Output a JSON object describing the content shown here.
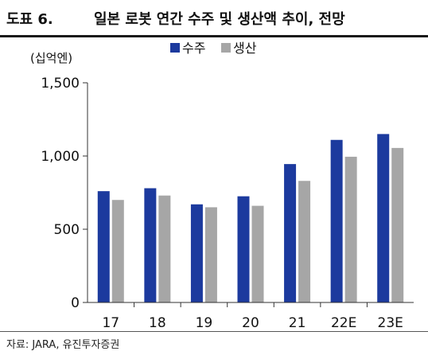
{
  "header": {
    "figure_label": "도표 6.",
    "title": "일본 로봇 연간 수주 및 생산액 추이, 전망"
  },
  "footer": {
    "source": "자료: JARA, 유진투자증권"
  },
  "chart_data": {
    "type": "bar",
    "unit_label": "(십억엔)",
    "categories": [
      "17",
      "18",
      "19",
      "20",
      "21",
      "22E",
      "23E"
    ],
    "series": [
      {
        "name": "수주",
        "color": "#1c3a9e",
        "values": [
          760,
          780,
          670,
          725,
          945,
          1110,
          1150
        ]
      },
      {
        "name": "생산",
        "color": "#a6a6a6",
        "values": [
          700,
          730,
          650,
          660,
          830,
          995,
          1055
        ]
      }
    ],
    "ylim": [
      0,
      1500
    ],
    "yticks": [
      0,
      500,
      1000,
      1500
    ],
    "ytick_labels": [
      "0",
      "500",
      "1,000",
      "1,500"
    ],
    "grid": false,
    "legend_position": "top-center"
  }
}
